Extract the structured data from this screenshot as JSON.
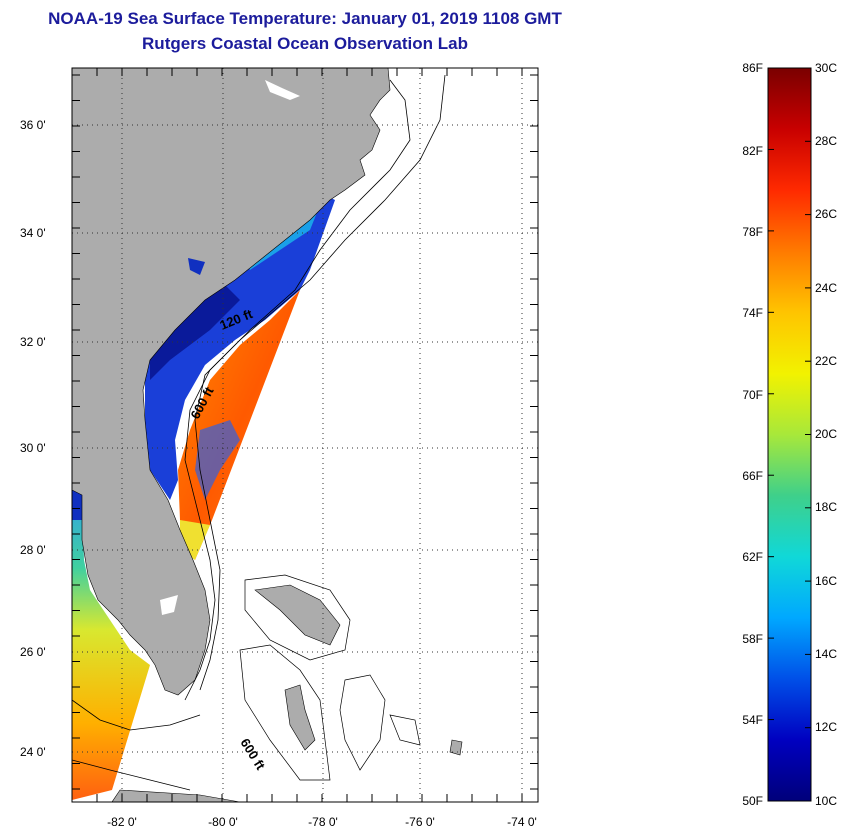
{
  "title": {
    "line1": "NOAA-19 Sea Surface Temperature:  January 01, 2019 1108 GMT",
    "line2": "Rutgers Coastal Ocean Observation Lab"
  },
  "map": {
    "lat_ticks": [
      "36 0'",
      "34 0'",
      "32 0'",
      "30 0'",
      "28 0'",
      "26 0'",
      "24 0'"
    ],
    "lon_ticks": [
      "-82 0'",
      "-80 0'",
      "-78 0'",
      "-76 0'",
      "-74 0'"
    ],
    "contour_labels": [
      "120 ft",
      "600 ft",
      "600 ft"
    ],
    "colors": {
      "land": "#acacac",
      "water": "#ffffff",
      "grid": "#333333"
    }
  },
  "legend": {
    "fahrenheit": [
      "86F",
      "82F",
      "78F",
      "74F",
      "70F",
      "66F",
      "62F",
      "58F",
      "54F",
      "50F"
    ],
    "celsius": [
      "30C",
      "28C",
      "26C",
      "24C",
      "22C",
      "20C",
      "18C",
      "16C",
      "14C",
      "12C",
      "10C"
    ],
    "colors": [
      "#7a0000",
      "#c80000",
      "#ff2a00",
      "#ff7a00",
      "#ffc400",
      "#f2f200",
      "#a8e83a",
      "#3fd08a",
      "#10d8d8",
      "#00a8ff",
      "#0050e8",
      "#0000c0",
      "#00007a"
    ]
  }
}
